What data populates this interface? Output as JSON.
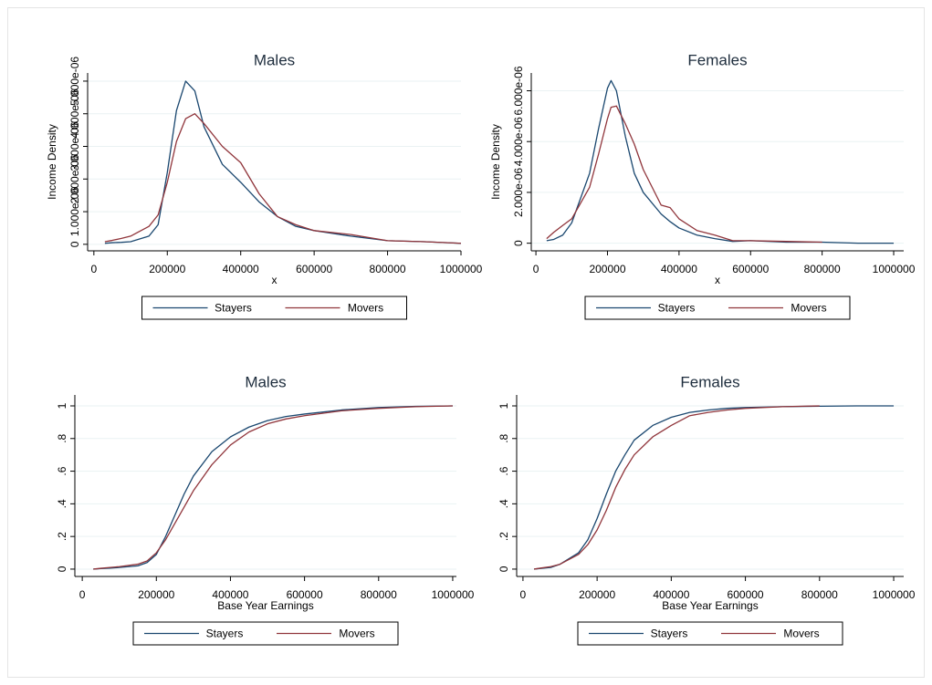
{
  "chart_data": [
    {
      "type": "line",
      "title": "Males",
      "x_label": "x",
      "y_label": "Income Density",
      "x": [
        30000,
        50000,
        75000,
        100000,
        150000,
        175000,
        200000,
        225000,
        250000,
        275000,
        300000,
        350000,
        400000,
        450000,
        500000,
        550000,
        600000,
        700000,
        800000,
        900000,
        1000000
      ],
      "series": [
        {
          "name": "Stayers",
          "color": "#1a476f",
          "values": [
            3e-08,
            5e-08,
            6e-08,
            8e-08,
            2.5e-07,
            6e-07,
            2.2e-06,
            4.1e-06,
            5e-06,
            4.7e-06,
            3.6e-06,
            2.45e-06,
            1.9e-06,
            1.3e-06,
            8.5e-07,
            5.5e-07,
            4.2e-07,
            2.5e-07,
            1.1e-07,
            8e-08,
            3e-08
          ]
        },
        {
          "name": "Movers",
          "color": "#90353b",
          "values": [
            8e-08,
            1.2e-07,
            1.8e-07,
            2.5e-07,
            5.5e-07,
            9e-07,
            1.9e-06,
            3.15e-06,
            3.85e-06,
            4e-06,
            3.7e-06,
            3e-06,
            2.5e-06,
            1.55e-06,
            8.5e-07,
            6e-07,
            4.2e-07,
            3e-07,
            1.1e-07,
            8e-08,
            3e-08
          ]
        }
      ],
      "xlim": [
        -17000,
        1000000
      ],
      "xticks": [
        0,
        200000,
        400000,
        600000,
        800000,
        1000000
      ],
      "ylim": [
        -2e-07,
        5.25e-06
      ],
      "yticks": [
        0,
        {
          "value": 1e-06,
          "label": "1.000e-06"
        },
        {
          "value": 2e-06,
          "label": "2.000e-06"
        },
        {
          "value": 3e-06,
          "label": "3.000e-06"
        },
        {
          "value": 4e-06,
          "label": "4.000e-06"
        },
        {
          "value": 5e-06,
          "label": "5.000e-06"
        }
      ],
      "grid": true,
      "legend": "bottom"
    },
    {
      "type": "line",
      "title": "Females",
      "x_label": "x",
      "y_label": "Income Density",
      "x": [
        30000,
        50000,
        75000,
        100000,
        150000,
        175000,
        200000,
        210000,
        225000,
        250000,
        275000,
        300000,
        350000,
        375000,
        400000,
        450000,
        500000,
        550000,
        600000,
        700000,
        800000,
        900000,
        1000000
      ],
      "series": [
        {
          "name": "Stayers",
          "color": "#1a476f",
          "values": [
            1e-07,
            1.5e-07,
            3.2e-07,
            8e-07,
            2.75e-06,
            4.5e-06,
            6.1e-06,
            6.4e-06,
            6e-06,
            4.2e-06,
            2.75e-06,
            2e-06,
            1.15e-06,
            8.5e-07,
            6e-07,
            3.2e-07,
            1.8e-07,
            7e-08,
            1e-07,
            4e-08,
            4e-08,
            0,
            0
          ]
        },
        {
          "name": "Movers",
          "color": "#90353b",
          "values": [
            1.8e-07,
            4.3e-07,
            7e-07,
            9.6e-07,
            2.2e-06,
            3.5e-06,
            4.9e-06,
            5.35e-06,
            5.4e-06,
            4.7e-06,
            3.9e-06,
            2.9e-06,
            1.5e-06,
            1.4e-06,
            9.6e-07,
            5e-07,
            3.2e-07,
            1e-07,
            1e-07,
            7e-08,
            4e-08,
            null,
            null
          ]
        }
      ],
      "xlim": [
        -13000,
        1028000
      ],
      "xticks": [
        0,
        200000,
        400000,
        600000,
        800000,
        1000000
      ],
      "ylim": [
        -3e-07,
        6.7e-06
      ],
      "yticks": [
        0,
        {
          "value": 2e-06,
          "label": "2.000e-06"
        },
        {
          "value": 4e-06,
          "label": "4.000e-06"
        },
        {
          "value": 6e-06,
          "label": "6.000e-06"
        }
      ],
      "grid": true,
      "legend": "bottom"
    },
    {
      "type": "line",
      "title": "Males",
      "x_label": "Base Year Earnings",
      "x": [
        30000,
        50000,
        75000,
        100000,
        150000,
        175000,
        200000,
        225000,
        250000,
        275000,
        300000,
        350000,
        400000,
        450000,
        500000,
        550000,
        600000,
        700000,
        800000,
        900000,
        1000000
      ],
      "series": [
        {
          "name": "Stayers",
          "color": "#1a476f",
          "values": [
            0,
            0.003,
            0.006,
            0.01,
            0.02,
            0.04,
            0.09,
            0.2,
            0.33,
            0.46,
            0.57,
            0.72,
            0.81,
            0.87,
            0.91,
            0.935,
            0.95,
            0.975,
            0.99,
            0.997,
            1
          ]
        },
        {
          "name": "Movers",
          "color": "#90353b",
          "values": [
            0,
            0.005,
            0.01,
            0.015,
            0.03,
            0.05,
            0.1,
            0.18,
            0.28,
            0.38,
            0.48,
            0.64,
            0.76,
            0.84,
            0.89,
            0.92,
            0.94,
            0.97,
            0.985,
            0.995,
            1
          ]
        }
      ],
      "xlim": [
        -20000,
        1010000
      ],
      "xticks": [
        0,
        200000,
        400000,
        600000,
        800000,
        1000000
      ],
      "ylim": [
        -0.045,
        1.067
      ],
      "yticks": [
        0,
        {
          "value": 0.2,
          "label": ".2"
        },
        {
          "value": 0.4,
          "label": ".4"
        },
        {
          "value": 0.6,
          "label": ".6"
        },
        {
          "value": 0.8,
          "label": ".8"
        },
        1
      ],
      "grid": true,
      "legend": "bottom"
    },
    {
      "type": "line",
      "title": "Females",
      "x_label": "Base Year Earnings",
      "x": [
        30000,
        50000,
        75000,
        100000,
        150000,
        175000,
        200000,
        225000,
        250000,
        275000,
        300000,
        350000,
        400000,
        450000,
        500000,
        550000,
        600000,
        700000,
        800000,
        900000,
        1000000
      ],
      "series": [
        {
          "name": "Stayers",
          "color": "#1a476f",
          "values": [
            0,
            0.005,
            0.01,
            0.03,
            0.1,
            0.18,
            0.31,
            0.46,
            0.6,
            0.7,
            0.79,
            0.88,
            0.93,
            0.96,
            0.975,
            0.985,
            0.99,
            0.995,
            0.998,
            1,
            1
          ]
        },
        {
          "name": "Movers",
          "color": "#90353b",
          "values": [
            0,
            0.007,
            0.015,
            0.03,
            0.09,
            0.15,
            0.24,
            0.36,
            0.5,
            0.61,
            0.7,
            0.81,
            0.88,
            0.94,
            0.96,
            0.975,
            0.985,
            0.995,
            1,
            null,
            null
          ]
        }
      ],
      "xlim": [
        -17000,
        1027000
      ],
      "xticks": [
        0,
        200000,
        400000,
        600000,
        800000,
        1000000
      ],
      "ylim": [
        -0.045,
        1.067
      ],
      "yticks": [
        0,
        {
          "value": 0.2,
          "label": ".2"
        },
        {
          "value": 0.4,
          "label": ".4"
        },
        {
          "value": 0.6,
          "label": ".6"
        },
        {
          "value": 0.8,
          "label": ".8"
        },
        1
      ],
      "grid": true,
      "legend": "bottom"
    }
  ]
}
